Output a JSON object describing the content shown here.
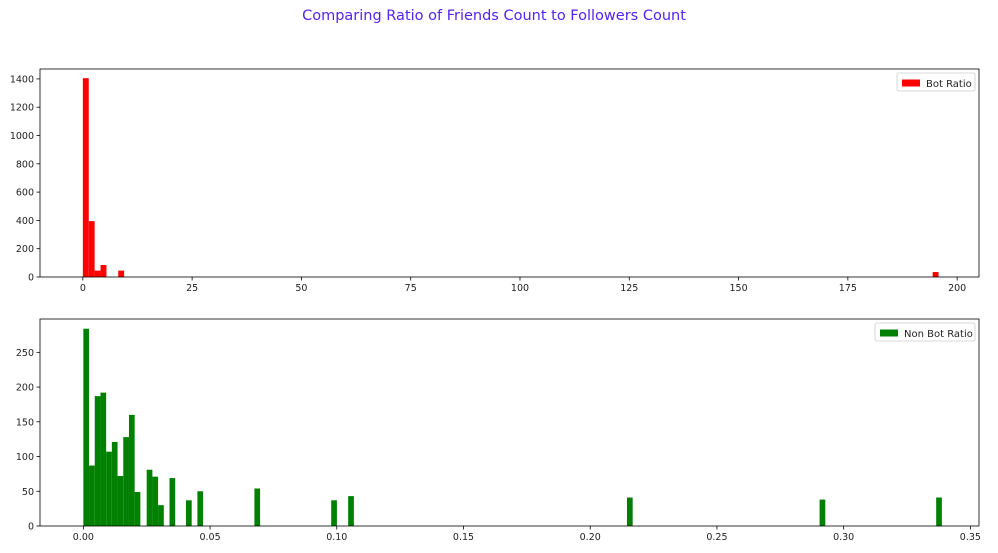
{
  "title": "Comparing Ratio of Friends Count to Followers Count",
  "colors": {
    "title": "#5522ee",
    "bot": "#ff0000",
    "nonbot": "#008000"
  },
  "chart_data": [
    {
      "type": "bar",
      "name": "bot-histogram",
      "legend": "Bot Ratio",
      "legend_position": "top-right",
      "xlim": [
        -9.8,
        205
      ],
      "ylim": [
        0,
        1470
      ],
      "xticks": [
        0,
        25,
        50,
        75,
        100,
        125,
        150,
        175,
        200
      ],
      "xtick_labels": [
        "0",
        "25",
        "50",
        "75",
        "100",
        "125",
        "150",
        "175",
        "200"
      ],
      "yticks": [
        0,
        200,
        400,
        600,
        800,
        1000,
        1200,
        1400
      ],
      "ytick_labels": [
        "0",
        "200",
        "400",
        "600",
        "800",
        "1000",
        "1200",
        "1400"
      ],
      "bin_width": 1.35,
      "bars": [
        {
          "x": 0.0,
          "y": 1405
        },
        {
          "x": 1.35,
          "y": 395
        },
        {
          "x": 2.7,
          "y": 45
        },
        {
          "x": 4.05,
          "y": 85
        },
        {
          "x": 8.1,
          "y": 45
        },
        {
          "x": 194.4,
          "y": 35
        }
      ]
    },
    {
      "type": "bar",
      "name": "nonbot-histogram",
      "legend": "Non Bot Ratio",
      "legend_position": "top-right",
      "xlim": [
        -0.0171,
        0.3534
      ],
      "ylim": [
        0,
        298
      ],
      "xticks": [
        0.0,
        0.05,
        0.1,
        0.15,
        0.2,
        0.25,
        0.3,
        0.35
      ],
      "xtick_labels": [
        "0.00",
        "0.05",
        "0.10",
        "0.15",
        "0.20",
        "0.25",
        "0.30",
        "0.35"
      ],
      "yticks": [
        0,
        50,
        100,
        150,
        200,
        250
      ],
      "ytick_labels": [
        "0",
        "50",
        "100",
        "150",
        "200",
        "250"
      ],
      "bin_width": 0.00225,
      "bars": [
        {
          "x": 0.0,
          "y": 284
        },
        {
          "x": 0.00225,
          "y": 87
        },
        {
          "x": 0.0045,
          "y": 187
        },
        {
          "x": 0.00675,
          "y": 192
        },
        {
          "x": 0.009,
          "y": 107
        },
        {
          "x": 0.01125,
          "y": 121
        },
        {
          "x": 0.0135,
          "y": 72
        },
        {
          "x": 0.01575,
          "y": 128
        },
        {
          "x": 0.018,
          "y": 160
        },
        {
          "x": 0.02025,
          "y": 49
        },
        {
          "x": 0.025,
          "y": 81
        },
        {
          "x": 0.02725,
          "y": 71
        },
        {
          "x": 0.0295,
          "y": 30
        },
        {
          "x": 0.034,
          "y": 69
        },
        {
          "x": 0.0405,
          "y": 37
        },
        {
          "x": 0.045,
          "y": 50
        },
        {
          "x": 0.0675,
          "y": 54
        },
        {
          "x": 0.0978,
          "y": 37
        },
        {
          "x": 0.1045,
          "y": 43
        },
        {
          "x": 0.2145,
          "y": 41
        },
        {
          "x": 0.2905,
          "y": 38
        },
        {
          "x": 0.3365,
          "y": 41
        }
      ]
    }
  ]
}
